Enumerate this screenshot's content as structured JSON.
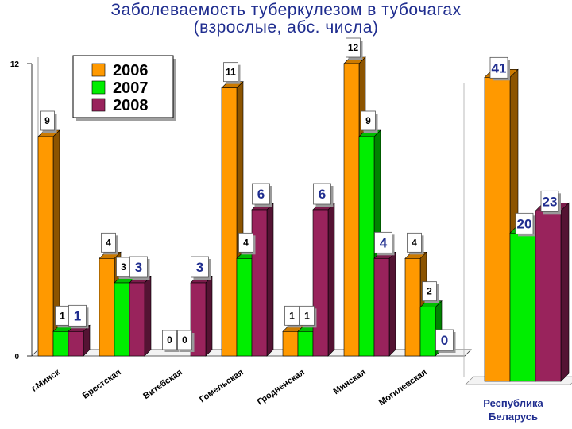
{
  "title_line1": "Заболеваемость туберкулезом в тубочагах",
  "title_line2": "(взрослые, абс. числа)",
  "colors": {
    "2006": "#ff9900",
    "2007": "#00ee00",
    "2008": "#99235c",
    "title": "#1f2d8f"
  },
  "chart_data": [
    {
      "type": "bar",
      "title": "Заболеваемость туберкулезом в тубочагах",
      "subtitle": "(взрослые, абс. числа)",
      "categories": [
        "г.Минск",
        "Брестская",
        "Витебская",
        "Гомельская",
        "Гродненская",
        "Минская",
        "Могилевская"
      ],
      "series": [
        {
          "name": "2006",
          "values": [
            9,
            4,
            0,
            11,
            1,
            12,
            4
          ]
        },
        {
          "name": "2007",
          "values": [
            1,
            3,
            0,
            4,
            1,
            9,
            2
          ]
        },
        {
          "name": "2008",
          "values": [
            1,
            3,
            3,
            6,
            6,
            4,
            0
          ]
        }
      ],
      "y_ticks": [
        "0",
        "12"
      ],
      "ylim": [
        0,
        12
      ],
      "grid": false,
      "legend": "top-left",
      "style": "3d"
    },
    {
      "type": "bar",
      "categories": [
        "Республика Беларусь"
      ],
      "series": [
        {
          "name": "2006",
          "values": [
            41
          ]
        },
        {
          "name": "2007",
          "values": [
            20
          ]
        },
        {
          "name": "2008",
          "values": [
            23
          ]
        }
      ],
      "ylim": [
        0,
        45
      ],
      "grid": false,
      "legend": "none",
      "style": "3d"
    }
  ]
}
